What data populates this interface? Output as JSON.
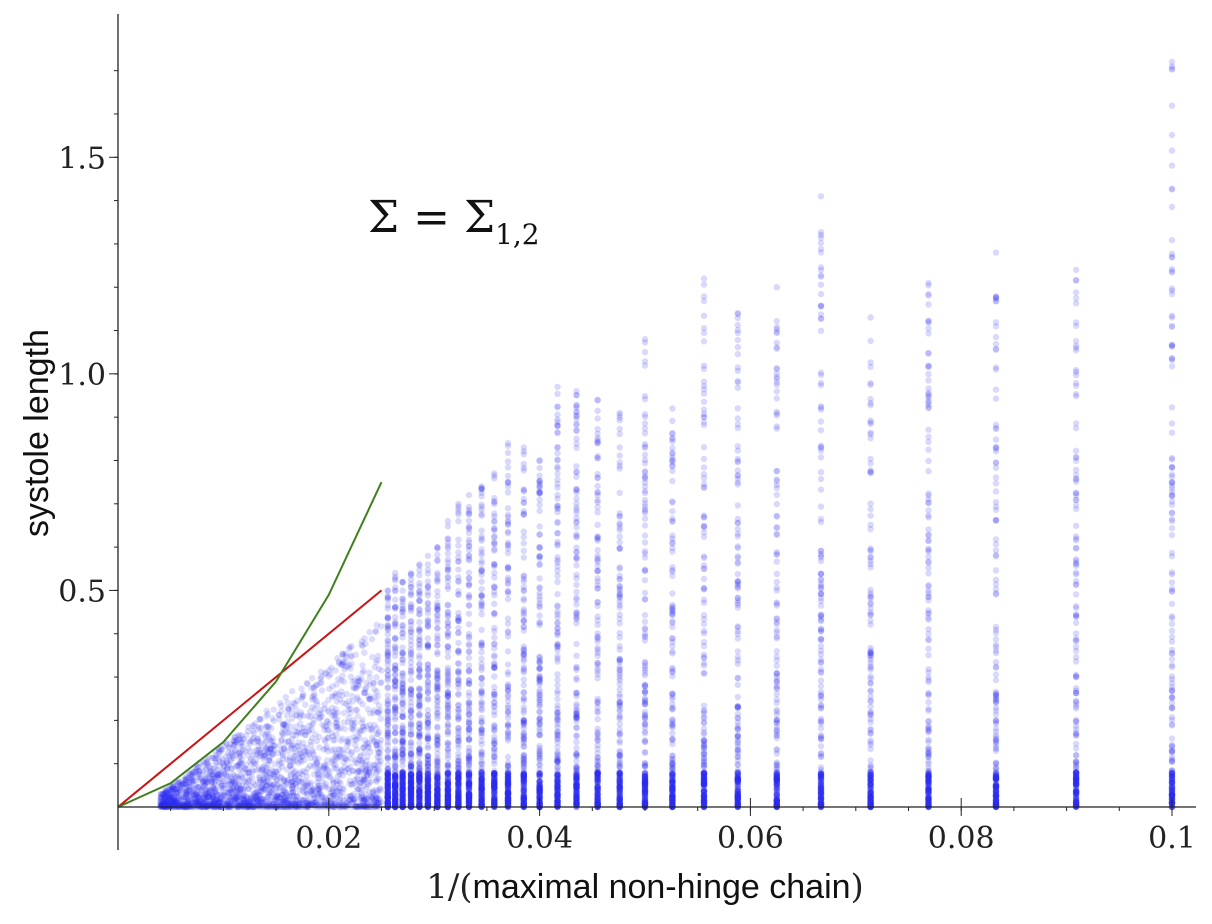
{
  "chart_data": {
    "type": "scatter",
    "title": "",
    "xlabel": "1/(maximal non-hinge chain)",
    "xlabel_parts": [
      "1/(",
      "maximal non-hinge chain",
      ")"
    ],
    "ylabel": "systole length",
    "xlim": [
      0,
      0.1
    ],
    "ylim": [
      0,
      1.75
    ],
    "x_ticks": [
      0.02,
      0.04,
      0.06,
      0.08,
      0.1
    ],
    "x_tick_labels": [
      "0.02",
      "0.04",
      "0.06",
      "0.08",
      "0.1"
    ],
    "y_ticks": [
      0.5,
      1.0,
      1.5
    ],
    "y_tick_labels": [
      "0.5",
      "1.0",
      "1.5"
    ],
    "grid": false,
    "annotation": {
      "text": "Σ = Σ",
      "subscript": "1,2",
      "x": 0.022,
      "y": 1.31
    },
    "point_color": "#2a2af0",
    "series": [
      {
        "type": "scatter",
        "color": "#2a2af0",
        "columns": [
          {
            "x": 0.1,
            "max": 1.72
          },
          {
            "x": 0.0909,
            "max": 1.24
          },
          {
            "x": 0.0833,
            "max": 1.28
          },
          {
            "x": 0.0769,
            "max": 1.21
          },
          {
            "x": 0.0714,
            "max": 1.13
          },
          {
            "x": 0.0667,
            "max": 1.41
          },
          {
            "x": 0.0625,
            "max": 1.2
          },
          {
            "x": 0.0588,
            "max": 1.14
          },
          {
            "x": 0.0556,
            "max": 1.22
          },
          {
            "x": 0.0526,
            "max": 0.92
          },
          {
            "x": 0.05,
            "max": 1.08
          },
          {
            "x": 0.0476,
            "max": 0.91
          },
          {
            "x": 0.0455,
            "max": 0.94
          },
          {
            "x": 0.0435,
            "max": 0.96
          },
          {
            "x": 0.0417,
            "max": 0.97
          },
          {
            "x": 0.04,
            "max": 0.8
          },
          {
            "x": 0.0385,
            "max": 0.83
          },
          {
            "x": 0.037,
            "max": 0.84
          },
          {
            "x": 0.0357,
            "max": 0.77
          },
          {
            "x": 0.0345,
            "max": 0.74
          },
          {
            "x": 0.0333,
            "max": 0.72
          },
          {
            "x": 0.0323,
            "max": 0.7
          },
          {
            "x": 0.0313,
            "max": 0.66
          },
          {
            "x": 0.0303,
            "max": 0.6
          },
          {
            "x": 0.0294,
            "max": 0.58
          },
          {
            "x": 0.0286,
            "max": 0.56
          },
          {
            "x": 0.0278,
            "max": 0.54
          },
          {
            "x": 0.027,
            "max": 0.52
          },
          {
            "x": 0.0263,
            "max": 0.54
          },
          {
            "x": 0.0256,
            "max": 0.5
          }
        ],
        "dense_region": {
          "x_range": [
            0.004,
            0.025
          ],
          "y_max_at_x_max": 0.4
        }
      },
      {
        "type": "line",
        "color": "#cc1111",
        "points": [
          [
            0,
            0
          ],
          [
            0.025,
            0.5
          ]
        ]
      },
      {
        "type": "line",
        "color": "#3f7f1f",
        "points": [
          [
            0,
            0
          ],
          [
            0.005,
            0.055
          ],
          [
            0.01,
            0.15
          ],
          [
            0.015,
            0.29
          ],
          [
            0.02,
            0.49
          ],
          [
            0.025,
            0.75
          ]
        ]
      }
    ]
  }
}
